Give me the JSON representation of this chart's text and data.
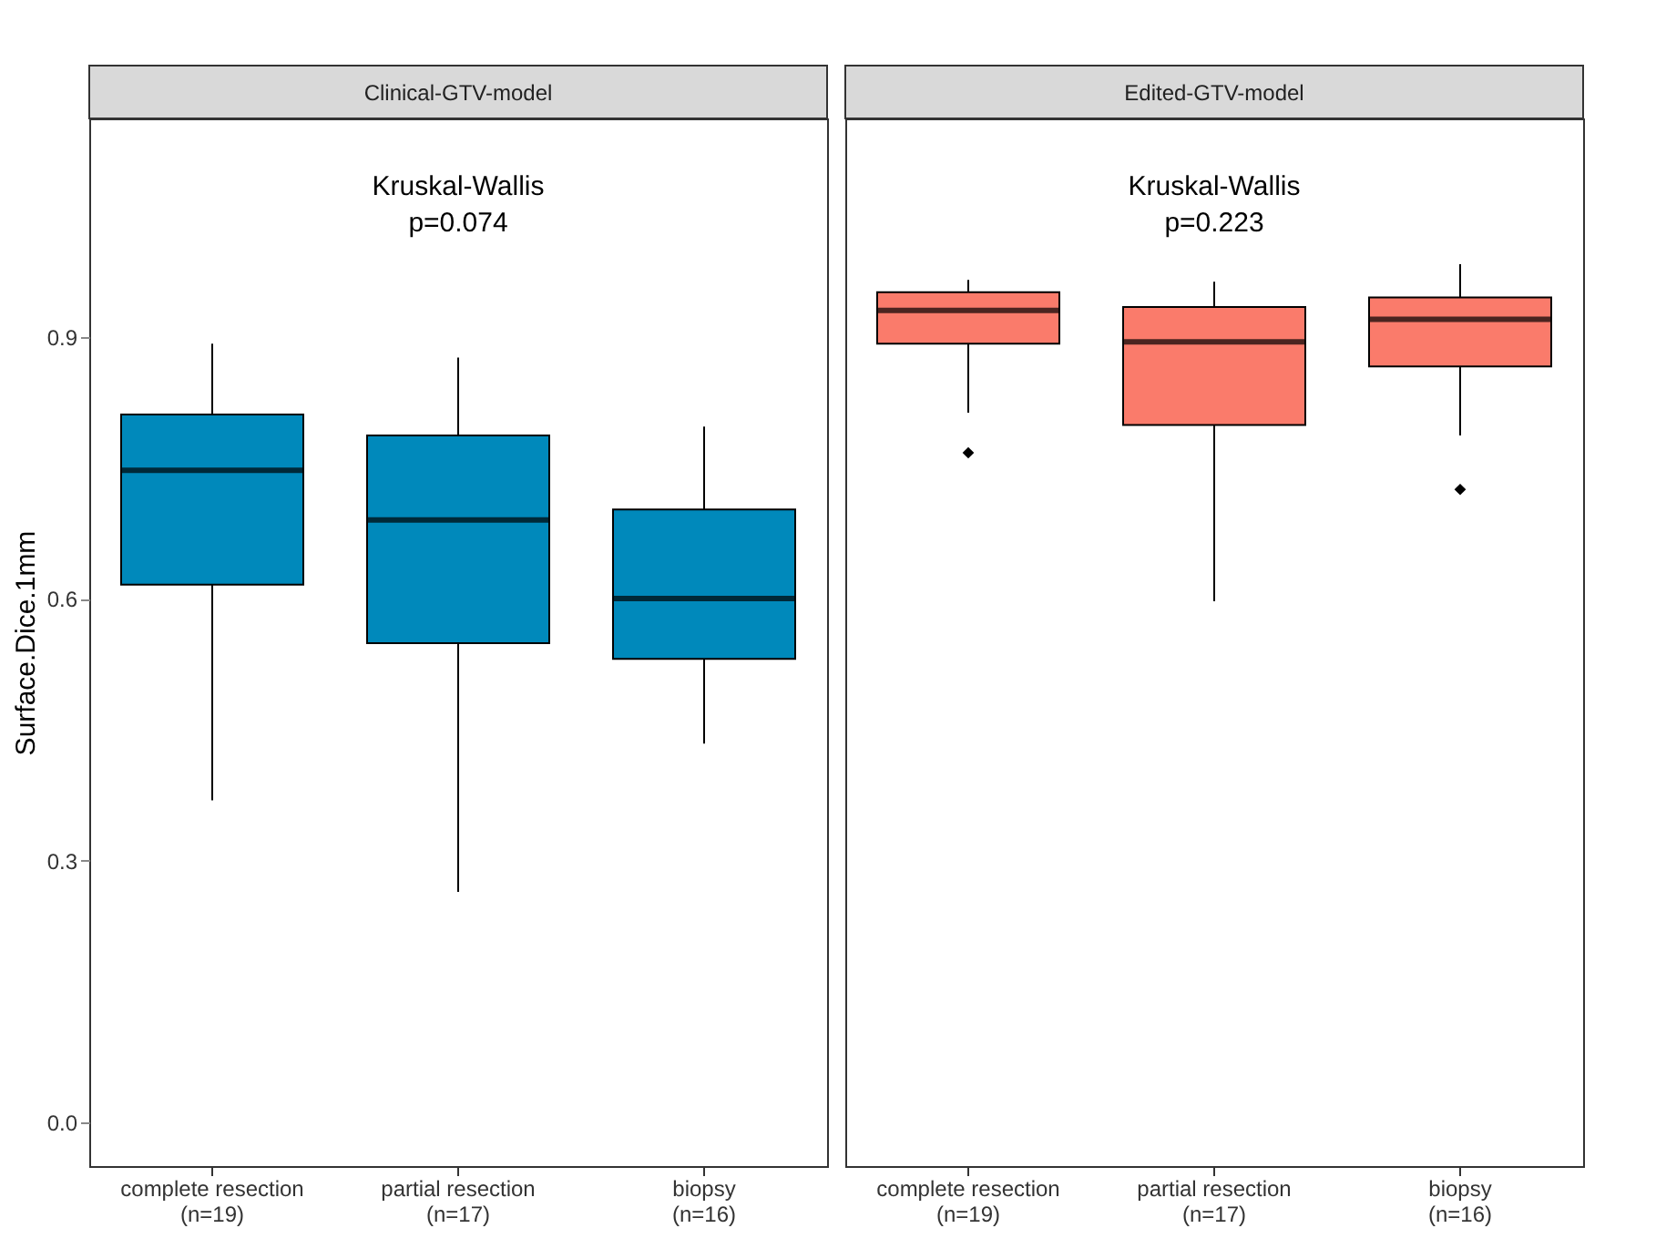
{
  "chart_data": [
    {
      "type": "box",
      "title": "Clinical-GTV-model",
      "ylabel": "Surface.Dice.1mm",
      "annotations": [
        "Kruskal-Wallis\np=0.074"
      ],
      "categories": [
        "complete resection\n(n=19)",
        "partial resection\n(n=17)",
        "biopsy\n(n=16)"
      ],
      "color": "#0089bb",
      "ylim": [
        -0.05,
        1.15
      ],
      "yticks": [
        {
          "value": 0,
          "label": "0.0"
        },
        {
          "value": 0.3,
          "label": "0.3"
        },
        {
          "value": 0.6,
          "label": "0.6"
        },
        {
          "value": 0.9,
          "label": "0.9"
        }
      ],
      "grid": false,
      "boxes": [
        {
          "low": 0.369,
          "q1": 0.616,
          "median": 0.747,
          "q3": 0.811,
          "high": 0.892
        },
        {
          "low": 0.264,
          "q1": 0.549,
          "median": 0.69,
          "q3": 0.787,
          "high": 0.876
        },
        {
          "low": 0.434,
          "q1": 0.531,
          "median": 0.6,
          "q3": 0.702,
          "high": 0.797
        }
      ]
    },
    {
      "type": "box",
      "title": "Edited-GTV-model",
      "annotations": [
        "Kruskal-Wallis\np=0.223"
      ],
      "categories": [
        "complete resection\n(n=19)",
        "partial resection\n(n=17)",
        "biopsy\n(n=16)"
      ],
      "color": "#fa7b6b",
      "ylim": [
        -0.05,
        1.15
      ],
      "tick_labels": "x",
      "grid": false,
      "boxes": [
        {
          "low": 0.813,
          "q1": 0.892,
          "median": 0.93,
          "q3": 0.951,
          "high": 0.965,
          "outliers": [
            0.767
          ]
        },
        {
          "low": 0.597,
          "q1": 0.799,
          "median": 0.894,
          "q3": 0.934,
          "high": 0.963
        },
        {
          "low": 0.787,
          "q1": 0.866,
          "median": 0.92,
          "q3": 0.945,
          "high": 0.983,
          "outliers": [
            0.725
          ]
        }
      ]
    }
  ]
}
